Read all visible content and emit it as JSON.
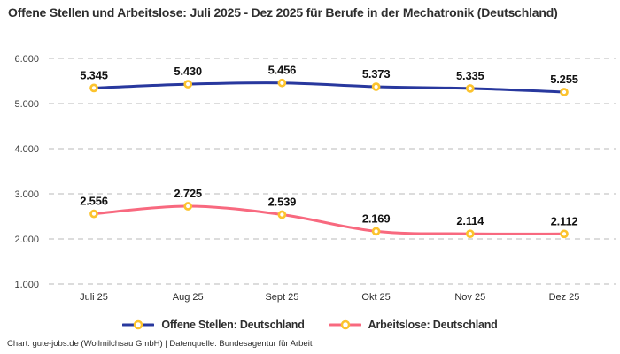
{
  "footer": "Chart: gute-jobs.de (Wollmilchsau GmbH) | Datenquelle: Bundesagentur für Arbeit",
  "chart_data": {
    "type": "line",
    "title": "Offene Stellen und Arbeitslose: Juli 2025 - Dez 2025 für Berufe in der Mechatronik (Deutschland)",
    "xlabel": "",
    "ylabel": "",
    "categories": [
      "Juli 25",
      "Aug 25",
      "Sept 25",
      "Okt 25",
      "Nov 25",
      "Dez 25"
    ],
    "series": [
      {
        "name": "Offene Stellen: Deutschland",
        "values": [
          5345,
          5430,
          5456,
          5373,
          5335,
          5255
        ],
        "labels": [
          "5.345",
          "5.430",
          "5.456",
          "5.373",
          "5.335",
          "5.255"
        ],
        "color": "#28389e",
        "marker_stroke": "#fcc32d",
        "marker_fill": "#ffffff"
      },
      {
        "name": "Arbeitslose: Deutschland",
        "values": [
          2556,
          2725,
          2539,
          2169,
          2114,
          2112
        ],
        "labels": [
          "2.556",
          "2.725",
          "2.539",
          "2.169",
          "2.114",
          "2.112"
        ],
        "color": "#f8697f",
        "marker_stroke": "#fcc32d",
        "marker_fill": "#ffffff"
      }
    ],
    "ylim": [
      1000,
      6000
    ],
    "yticks": [
      1000,
      2000,
      3000,
      4000,
      5000,
      6000
    ],
    "ytick_labels": [
      "1.000",
      "2.000",
      "3.000",
      "4.000",
      "5.000",
      "6.000"
    ],
    "grid": "horizontal-dashed",
    "legend_position": "bottom",
    "colors": {
      "grid": "#c6c6c6",
      "axis_text": "#3d3d3d",
      "data_label": "#121212",
      "background": "#ffffff"
    }
  }
}
